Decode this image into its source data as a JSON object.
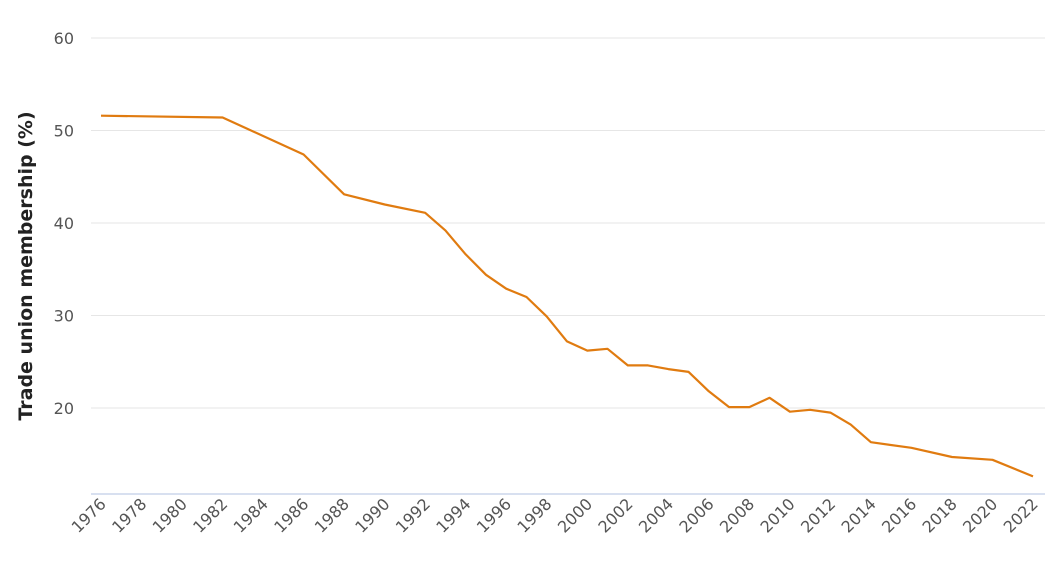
{
  "chart_data": {
    "type": "line",
    "title": "",
    "xlabel": "",
    "ylabel": "Trade union membership (%)",
    "ylim": [
      10.7,
      60
    ],
    "xlim": [
      1976,
      2022
    ],
    "yticks": [
      20,
      30,
      40,
      50,
      60
    ],
    "xticks": [
      1976,
      1978,
      1980,
      1982,
      1984,
      1986,
      1988,
      1990,
      1992,
      1994,
      1996,
      1998,
      2000,
      2002,
      2004,
      2006,
      2008,
      2010,
      2012,
      2014,
      2016,
      2018,
      2020,
      2022
    ],
    "grid": true,
    "series": [
      {
        "name": "Trade union membership",
        "color": "#e07b10",
        "x": [
          1976,
          1982,
          1986,
          1988,
          1990,
          1992,
          1993,
          1994,
          1995,
          1996,
          1997,
          1998,
          1999,
          2000,
          2001,
          2002,
          2003,
          2004,
          2005,
          2006,
          2007,
          2008,
          2009,
          2010,
          2011,
          2012,
          2013,
          2014,
          2016,
          2018,
          2020,
          2022
        ],
        "y": [
          51.6,
          51.4,
          47.4,
          43.1,
          42.0,
          41.1,
          39.2,
          36.6,
          34.4,
          32.9,
          32.0,
          29.9,
          27.2,
          26.2,
          26.4,
          24.6,
          24.6,
          24.2,
          23.9,
          21.8,
          20.1,
          20.1,
          21.1,
          19.6,
          19.8,
          19.5,
          18.2,
          16.3,
          15.7,
          14.7,
          14.4,
          12.6
        ]
      }
    ]
  }
}
